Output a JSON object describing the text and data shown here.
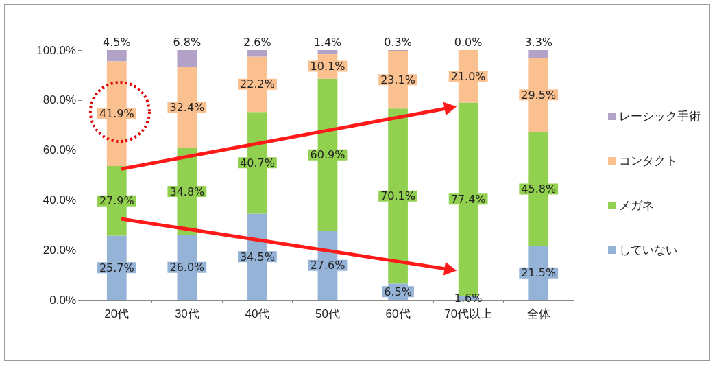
{
  "chart_data": {
    "type": "bar",
    "stacked": true,
    "categories": [
      "20代",
      "30代",
      "40代",
      "50代",
      "60代",
      "70代以上",
      "全体"
    ],
    "series": [
      {
        "name": "していない",
        "color": "#95b3d7",
        "values": [
          25.7,
          26.0,
          34.5,
          27.6,
          6.5,
          1.6,
          21.5
        ],
        "value_labels": [
          "25.7%",
          "26.0%",
          "34.5%",
          "27.6%",
          "6.5%",
          "1.6%",
          "21.5%"
        ]
      },
      {
        "name": "メガネ",
        "color": "#92d050",
        "values": [
          27.9,
          34.8,
          40.7,
          60.9,
          70.1,
          77.4,
          45.8
        ],
        "value_labels": [
          "27.9%",
          "34.8%",
          "40.7%",
          "60.9%",
          "70.1%",
          "77.4%",
          "45.8%"
        ]
      },
      {
        "name": "コンタクト",
        "color": "#fac090",
        "values": [
          41.9,
          32.4,
          22.2,
          10.1,
          23.1,
          21.0,
          29.5
        ],
        "value_labels": [
          "41.9%",
          "32.4%",
          "22.2%",
          "10.1%",
          "23.1%",
          "21.0%",
          "29.5%"
        ]
      },
      {
        "name": "レーシック手術",
        "color": "#b3a2c7",
        "values": [
          4.5,
          6.8,
          2.6,
          1.4,
          0.3,
          0.0,
          3.3
        ],
        "value_labels": [
          "4.5%",
          "6.8%",
          "2.6%",
          "1.4%",
          "0.3%",
          "0.0%",
          "3.3%"
        ]
      }
    ],
    "ylim": [
      0,
      100
    ],
    "yticks": [
      {
        "value": 0,
        "label": "0.0%"
      },
      {
        "value": 20,
        "label": "20.0%"
      },
      {
        "value": 40,
        "label": "40.0%"
      },
      {
        "value": 60,
        "label": "60.0%"
      },
      {
        "value": 80,
        "label": "80.0%"
      },
      {
        "value": 100,
        "label": "100.0%"
      }
    ],
    "grid": false,
    "legend": "right"
  }
}
